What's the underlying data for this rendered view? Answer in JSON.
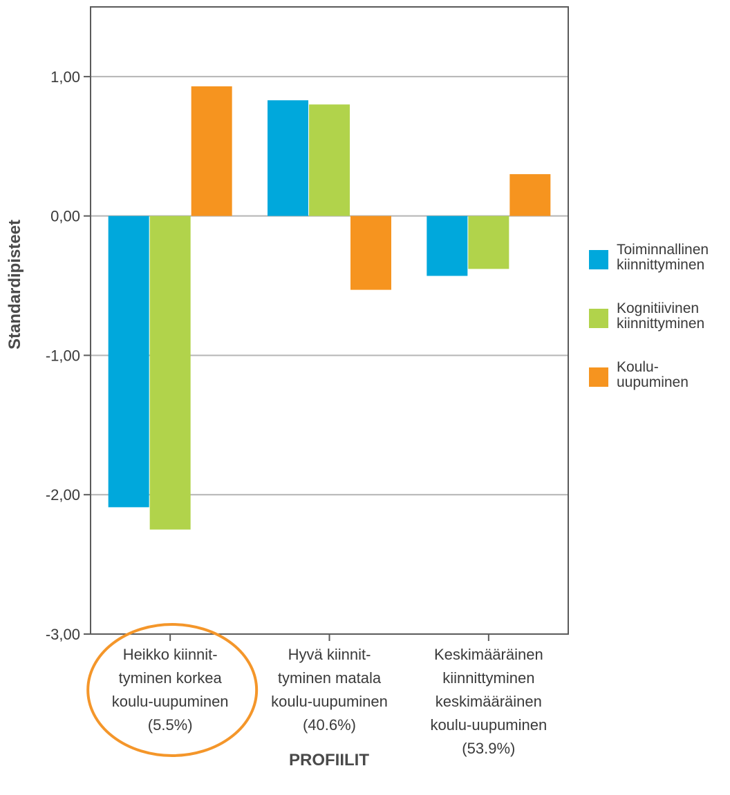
{
  "chart_data": {
    "type": "bar",
    "ylabel": "Standardipisteet",
    "xlabel": "PROFIILIT",
    "ylim": [
      -3,
      1.5
    ],
    "y_ticks": [
      1,
      0,
      -1,
      -2,
      -3
    ],
    "y_tick_labels": [
      "1,00",
      "0,00",
      "-1,00",
      "-2,00",
      "-3,00"
    ],
    "grid": true,
    "legend_position": "right",
    "categories": [
      [
        "Heikko kiinnit-",
        "tyminen korkea",
        "koulu-uupuminen",
        "(5.5%)"
      ],
      [
        "Hyvä kiinnit-",
        "tyminen matala",
        "koulu-uupuminen",
        "(40.6%)"
      ],
      [
        "Keskimääräinen",
        "kiinnittyminen",
        "keskimääräinen",
        "koulu-uupuminen",
        "(53.9%)"
      ]
    ],
    "highlighted_category": 0,
    "highlight_color": "#f4962a",
    "series": [
      {
        "name": [
          "Toiminnallinen",
          "kiinnittyminen"
        ],
        "color": "#00a8dc",
        "values": [
          -2.09,
          0.83,
          -0.43
        ]
      },
      {
        "name": [
          "Kognitiivinen",
          "kiinnittyminen"
        ],
        "color": "#b1d34b",
        "values": [
          -2.25,
          0.8,
          -0.38
        ]
      },
      {
        "name": [
          "Koulu-",
          "uupuminen"
        ],
        "color": "#f6941f",
        "values": [
          0.93,
          -0.53,
          0.3
        ]
      }
    ]
  }
}
